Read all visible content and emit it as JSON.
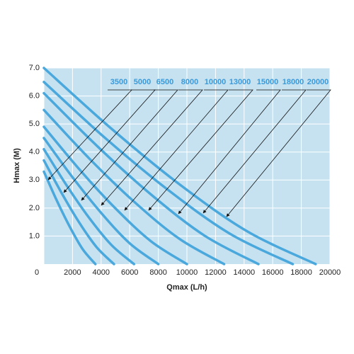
{
  "chart_data": {
    "type": "line",
    "xlabel": "Qmax (L/h)",
    "ylabel": "Hmax (M)",
    "xlim": [
      0,
      20000
    ],
    "ylim": [
      0,
      7
    ],
    "xticks": [
      0,
      2000,
      4000,
      6000,
      8000,
      10000,
      12000,
      14000,
      16000,
      18000,
      20000
    ],
    "yticks": [
      {
        "value": 1,
        "label": "1.0"
      },
      {
        "value": 2,
        "label": "2.0"
      },
      {
        "value": 3,
        "label": "3.0"
      },
      {
        "value": 4,
        "label": "4.0"
      },
      {
        "value": 5,
        "label": "5.0"
      },
      {
        "value": 6,
        "label": "6.0"
      },
      {
        "value": 7,
        "label": "7.0"
      }
    ],
    "grid": true,
    "series": [
      {
        "name": "3500",
        "color": "#4aa8dc",
        "x": [
          0,
          900,
          1800,
          2700,
          3600
        ],
        "values": [
          3.3,
          2.27,
          1.34,
          0.54,
          0
        ]
      },
      {
        "name": "5000",
        "color": "#4aa8dc",
        "x": [
          0,
          1225,
          2450,
          3675,
          4900
        ],
        "values": [
          3.7,
          2.55,
          1.5,
          0.61,
          0
        ]
      },
      {
        "name": "6500",
        "color": "#4aa8dc",
        "x": [
          0,
          1575,
          3150,
          4725,
          6300
        ],
        "values": [
          4.1,
          2.82,
          1.66,
          0.68,
          0
        ]
      },
      {
        "name": "8000",
        "color": "#4aa8dc",
        "x": [
          0,
          2000,
          4000,
          6000,
          8000
        ],
        "values": [
          4.5,
          3.1,
          1.83,
          0.74,
          0
        ]
      },
      {
        "name": "10000",
        "color": "#4aa8dc",
        "x": [
          0,
          2500,
          5000,
          7500,
          10000
        ],
        "values": [
          4.9,
          3.37,
          1.99,
          0.81,
          0
        ]
      },
      {
        "name": "13000",
        "color": "#4aa8dc",
        "x": [
          0,
          3150,
          6300,
          9450,
          12600
        ],
        "values": [
          5.5,
          3.78,
          2.23,
          0.91,
          0
        ]
      },
      {
        "name": "15000",
        "color": "#4aa8dc",
        "x": [
          0,
          3750,
          7500,
          11250,
          15000
        ],
        "values": [
          6.1,
          4.2,
          2.48,
          1.01,
          0
        ]
      },
      {
        "name": "18000",
        "color": "#4aa8dc",
        "x": [
          0,
          4350,
          8700,
          13050,
          17400
        ],
        "values": [
          6.5,
          4.47,
          2.64,
          1.07,
          0
        ]
      },
      {
        "name": "20000",
        "color": "#4aa8dc",
        "x": [
          0,
          4750,
          9500,
          14250,
          19000
        ],
        "values": [
          7.0,
          4.82,
          2.84,
          1.16,
          0
        ]
      }
    ]
  }
}
